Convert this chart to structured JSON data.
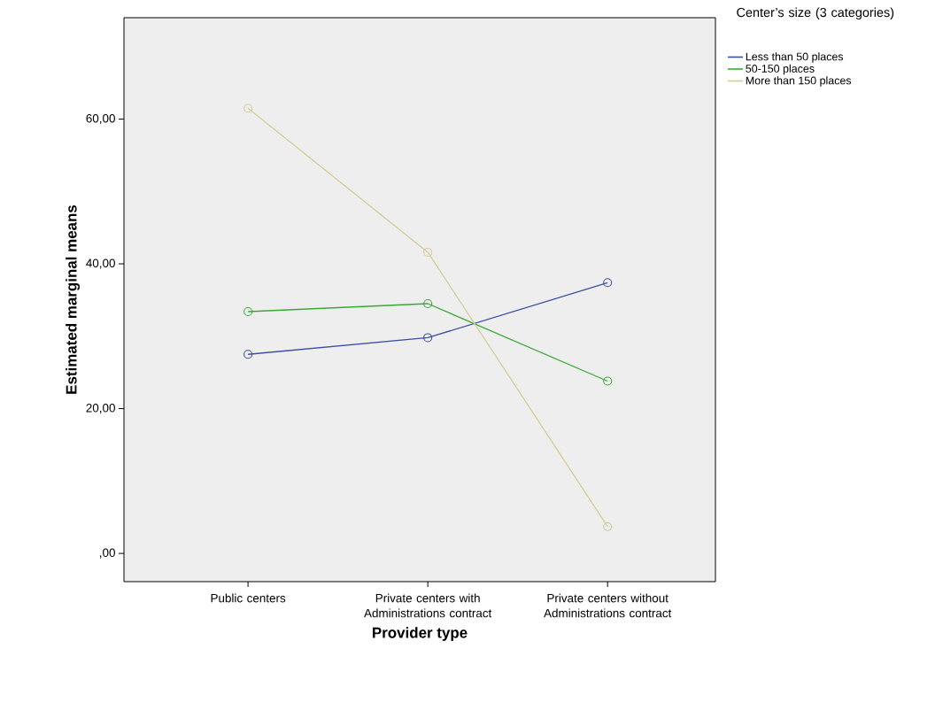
{
  "chart_data": {
    "type": "line",
    "xlabel": "Provider type",
    "ylabel": "Estimated marginal means",
    "legend_title": "Center’s size (3 categories)",
    "categories": [
      "Public centers",
      "Private centers with Administrations contract",
      "Private centers without Administrations contract"
    ],
    "series": [
      {
        "name": "Less than 50 places",
        "color": "#3a4fa0",
        "values": [
          27.5,
          29.8,
          37.4
        ]
      },
      {
        "name": "50-150 places",
        "color": "#3aaa35",
        "values": [
          33.4,
          34.5,
          23.8
        ]
      },
      {
        "name": "More than 150 places",
        "color": "#d4cc94",
        "values": [
          61.5,
          41.6,
          3.7
        ]
      }
    ],
    "ylim": [
      -3.9,
      74
    ],
    "yticks": [
      {
        "value": 0,
        "label": ",00"
      },
      {
        "value": 20,
        "label": "20,00"
      },
      {
        "value": 40,
        "label": "40,00"
      },
      {
        "value": 60,
        "label": "60,00"
      }
    ],
    "marker": "circle",
    "legend": "top right",
    "grid": false
  }
}
